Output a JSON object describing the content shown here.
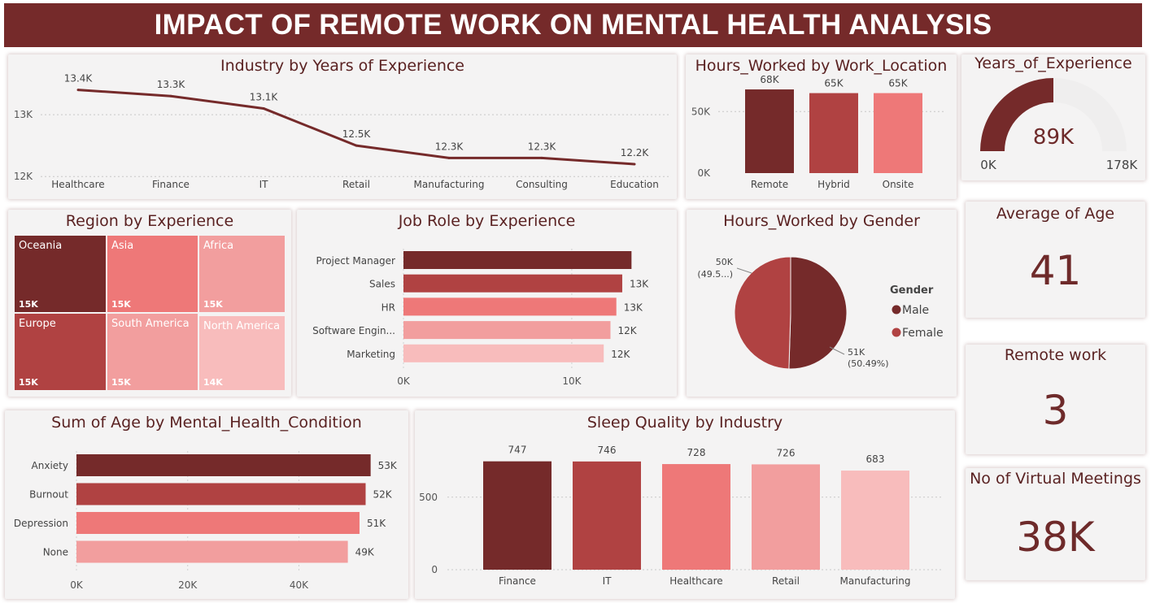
{
  "title": "IMPACT OF REMOTE WORK ON MENTAL HEALTH ANALYSIS",
  "colors": {
    "c1": "#752a2a",
    "c2": "#b04242",
    "c3": "#ee7878",
    "c4": "#f29e9e",
    "c5": "#f8bcbc"
  },
  "chart_data": [
    {
      "id": "industry",
      "type": "line",
      "title": "Industry by Years of Experience",
      "categories": [
        "Healthcare",
        "Finance",
        "IT",
        "Retail",
        "Manufacturing",
        "Consulting",
        "Education"
      ],
      "values": [
        13400,
        13300,
        13100,
        12500,
        12300,
        12300,
        12200
      ],
      "labels": [
        "13.4K",
        "13.3K",
        "13.1K",
        "12.5K",
        "12.3K",
        "12.3K",
        "12.2K"
      ],
      "yticks": [
        "13K",
        "12K"
      ],
      "ylim": [
        11950,
        13500
      ]
    },
    {
      "id": "location",
      "type": "bar",
      "title": "Hours_Worked by Work_Location",
      "categories": [
        "Remote",
        "Hybrid",
        "Onsite"
      ],
      "values": [
        68000,
        65000,
        65000
      ],
      "labels": [
        "68K",
        "65K",
        "65K"
      ],
      "yticks": [
        "50K",
        "0K"
      ],
      "ylim": [
        0,
        70000
      ]
    },
    {
      "id": "region",
      "type": "treemap",
      "title": "Region by Experience",
      "items": [
        {
          "name": "Oceania",
          "label": "15K"
        },
        {
          "name": "Asia",
          "label": "15K"
        },
        {
          "name": "Africa",
          "label": "15K"
        },
        {
          "name": "Europe",
          "label": "15K"
        },
        {
          "name": "South America",
          "label": "15K"
        },
        {
          "name": "North America",
          "label": "14K"
        }
      ]
    },
    {
      "id": "jobrole",
      "type": "bar",
      "orientation": "horizontal",
      "title": "Job Role by Experience",
      "categories": [
        "Project Manager",
        "Sales",
        "HR",
        "Software Engin...",
        "Marketing"
      ],
      "values": [
        13550,
        13000,
        12650,
        12300,
        11900
      ],
      "labels": [
        "",
        "13K",
        "13K",
        "12K",
        "12K"
      ],
      "xticks": [
        "0K",
        "10K"
      ],
      "xlim": [
        0,
        14500
      ]
    },
    {
      "id": "gender",
      "type": "pie",
      "title": "Hours_Worked by Gender",
      "legend_title": "Gender",
      "slices": [
        {
          "name": "Male",
          "value": 51000,
          "pct": 50.49,
          "label": "51K",
          "pct_label": "(50.49%)"
        },
        {
          "name": "Female",
          "value": 50000,
          "pct": 49.51,
          "label": "50K",
          "pct_label": "(49.5...)"
        }
      ]
    },
    {
      "id": "mental",
      "type": "bar",
      "orientation": "horizontal",
      "title": "Sum of Age by Mental_Health_Condition",
      "categories": [
        "Anxiety",
        "Burnout",
        "Depression",
        "None"
      ],
      "values": [
        52900,
        52000,
        50900,
        48800
      ],
      "labels": [
        "53K",
        "52K",
        "51K",
        "49K"
      ],
      "xticks": [
        "0K",
        "20K",
        "40K"
      ],
      "xlim": [
        0,
        55000
      ]
    },
    {
      "id": "sleep",
      "type": "bar",
      "title": "Sleep Quality by Industry",
      "categories": [
        "Finance",
        "IT",
        "Healthcare",
        "Retail",
        "Manufacturing"
      ],
      "values": [
        747,
        746,
        728,
        726,
        683
      ],
      "labels": [
        "747",
        "746",
        "728",
        "726",
        "683"
      ],
      "yticks": [
        "500",
        "0"
      ],
      "ylim": [
        0,
        930
      ]
    }
  ],
  "gauge": {
    "title": "Years_of_Experience",
    "value": 89000,
    "max": 178000,
    "value_label": "89K",
    "min_label": "0K",
    "max_label": "178K"
  },
  "kpis": {
    "age": {
      "title": "Average of Age",
      "value": "41"
    },
    "remote": {
      "title": "Remote work",
      "value": "3"
    },
    "meetings": {
      "title": "No of Virtual Meetings",
      "value": "38K"
    }
  }
}
